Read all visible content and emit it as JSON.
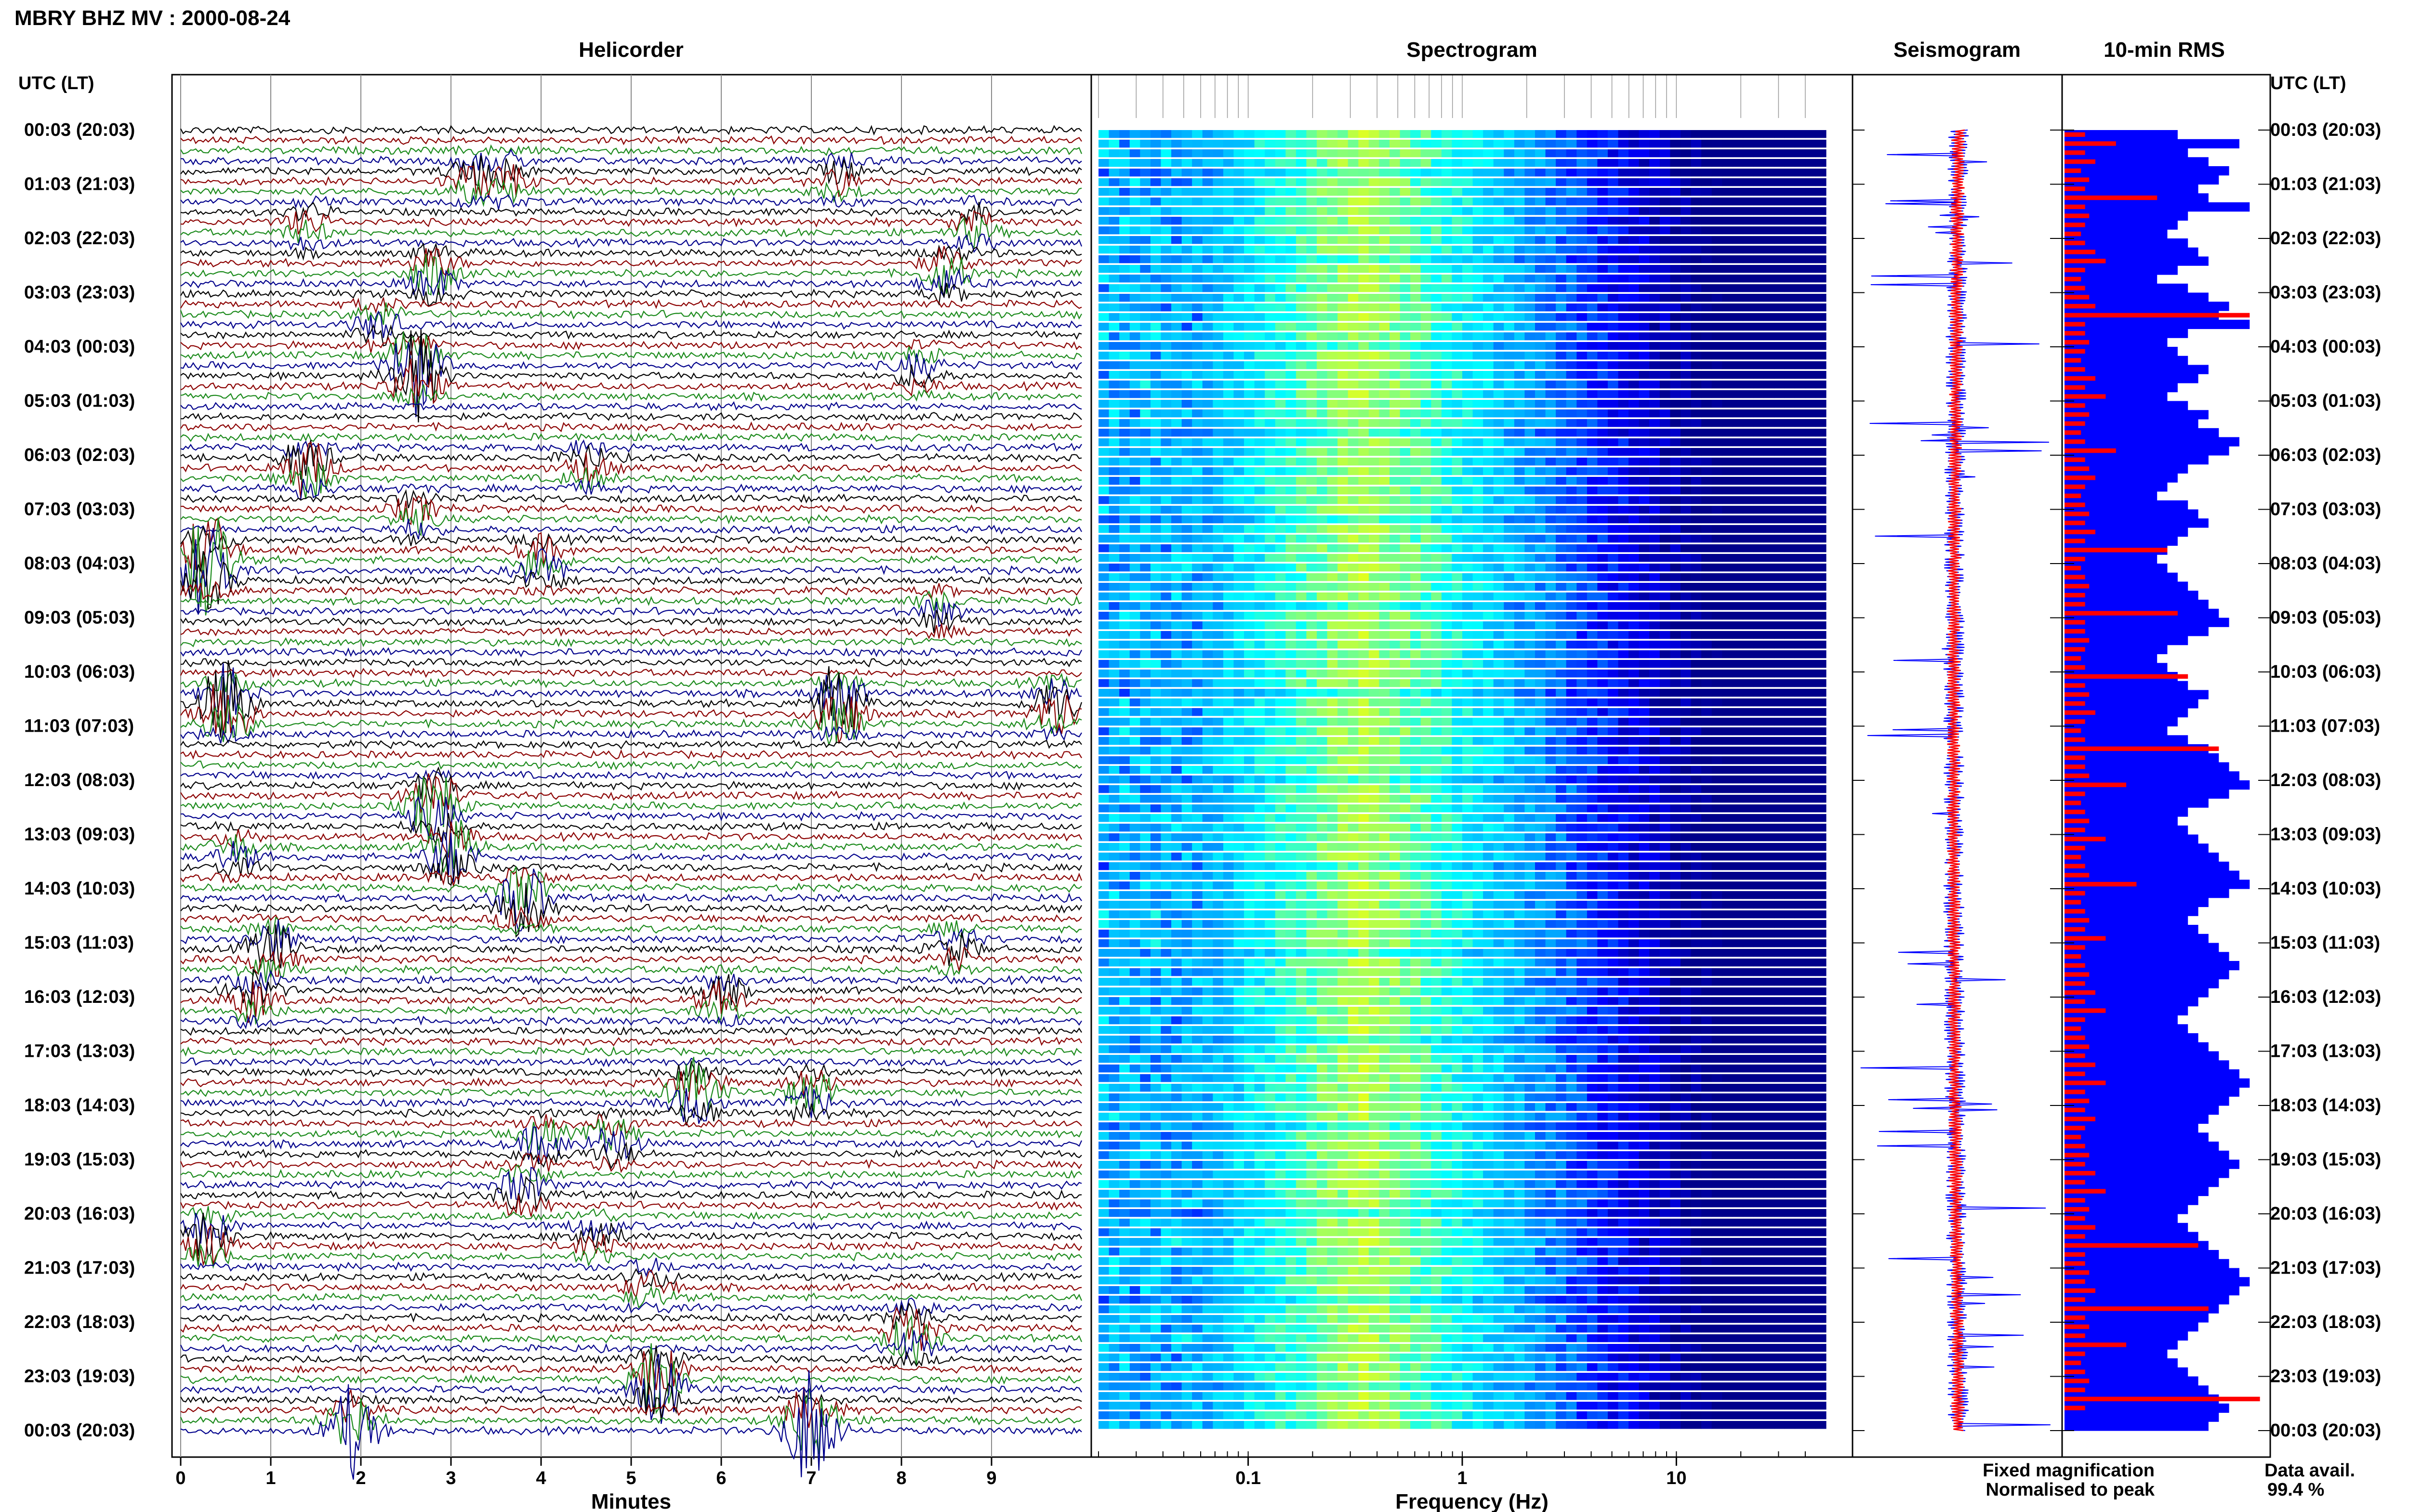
{
  "title": "MBRY BHZ MV : 2000-08-24",
  "utc_label_left": "UTC (LT)",
  "utc_label_right": "UTC (LT)",
  "panels": {
    "helicorder": {
      "title": "Helicorder",
      "xlabel": "Minutes"
    },
    "spectrogram": {
      "title": "Spectrogram",
      "xlabel": "Frequency (Hz)"
    },
    "seismogram": {
      "title": "Seismogram"
    },
    "rms": {
      "title": "10-min RMS"
    }
  },
  "legend": {
    "fixed": "Fixed magnification",
    "normalised": "Normalised to peak",
    "fixed_color": "#1a1aff",
    "normalised_color": "#ff1a1a"
  },
  "data_avail": {
    "label": "Data avail.",
    "value": "99.4 %"
  },
  "time_labels": [
    "00:03 (20:03)",
    "01:03 (21:03)",
    "02:03 (22:03)",
    "03:03 (23:03)",
    "04:03 (00:03)",
    "05:03 (01:03)",
    "06:03 (02:03)",
    "07:03 (03:03)",
    "08:03 (04:03)",
    "09:03 (05:03)",
    "10:03 (06:03)",
    "11:03 (07:03)",
    "12:03 (08:03)",
    "13:03 (09:03)",
    "14:03 (10:03)",
    "15:03 (11:03)",
    "16:03 (12:03)",
    "17:03 (13:03)",
    "18:03 (14:03)",
    "19:03 (15:03)",
    "20:03 (16:03)",
    "21:03 (17:03)",
    "22:03 (18:03)",
    "23:03 (19:03)",
    "00:03 (20:03)"
  ],
  "chart_data": [
    {
      "type": "line",
      "title": "Helicorder",
      "xlabel": "Minutes",
      "xlim": [
        0,
        10
      ],
      "xticks": [
        "0",
        "1",
        "2",
        "3",
        "4",
        "5",
        "6",
        "7",
        "8",
        "9"
      ],
      "trace_colors": [
        "#000000",
        "#8b0000",
        "#1b8a1b",
        "#00008b"
      ],
      "events": [
        {
          "t": 3.2,
          "amp": 0.6,
          "ch": 1
        },
        {
          "t": 3.6,
          "amp": 0.7,
          "ch": 1
        },
        {
          "t": 7.3,
          "amp": 0.5,
          "ch": 1
        },
        {
          "t": 1.4,
          "amp": 0.5,
          "ch": 2
        },
        {
          "t": 8.8,
          "amp": 0.6,
          "ch": 2
        },
        {
          "t": 2.8,
          "amp": 0.9,
          "ch": 3
        },
        {
          "t": 8.5,
          "amp": 0.8,
          "ch": 3
        },
        {
          "t": 2.2,
          "amp": 0.6,
          "ch": 4
        },
        {
          "t": 2.6,
          "amp": 2.2,
          "ch": 5
        },
        {
          "t": 8.2,
          "amp": 0.5,
          "ch": 5
        },
        {
          "t": 1.4,
          "amp": 1.2,
          "ch": 7
        },
        {
          "t": 4.5,
          "amp": 0.6,
          "ch": 7
        },
        {
          "t": 2.6,
          "amp": 0.6,
          "ch": 8
        },
        {
          "t": 0.3,
          "amp": 2.5,
          "ch": 9
        },
        {
          "t": 4.0,
          "amp": 0.9,
          "ch": 9
        },
        {
          "t": 8.4,
          "amp": 0.5,
          "ch": 10
        },
        {
          "t": 0.5,
          "amp": 2.0,
          "ch": 12
        },
        {
          "t": 7.3,
          "amp": 1.8,
          "ch": 12
        },
        {
          "t": 9.7,
          "amp": 1.0,
          "ch": 12
        },
        {
          "t": 2.8,
          "amp": 1.5,
          "ch": 14
        },
        {
          "t": 0.6,
          "amp": 0.6,
          "ch": 15
        },
        {
          "t": 3.0,
          "amp": 1.3,
          "ch": 15
        },
        {
          "t": 3.8,
          "amp": 1.5,
          "ch": 16
        },
        {
          "t": 1.0,
          "amp": 1.0,
          "ch": 17
        },
        {
          "t": 8.6,
          "amp": 0.6,
          "ch": 17
        },
        {
          "t": 0.8,
          "amp": 0.9,
          "ch": 18
        },
        {
          "t": 6.0,
          "amp": 0.7,
          "ch": 18
        },
        {
          "t": 5.7,
          "amp": 1.2,
          "ch": 20
        },
        {
          "t": 7.0,
          "amp": 0.8,
          "ch": 20
        },
        {
          "t": 4.0,
          "amp": 0.8,
          "ch": 21
        },
        {
          "t": 4.8,
          "amp": 0.8,
          "ch": 21
        },
        {
          "t": 3.8,
          "amp": 0.8,
          "ch": 22
        },
        {
          "t": 0.3,
          "amp": 1.0,
          "ch": 23
        },
        {
          "t": 4.6,
          "amp": 0.7,
          "ch": 23
        },
        {
          "t": 5.2,
          "amp": 0.6,
          "ch": 24
        },
        {
          "t": 8.1,
          "amp": 1.2,
          "ch": 25
        },
        {
          "t": 5.3,
          "amp": 1.8,
          "ch": 26
        },
        {
          "t": 1.9,
          "amp": 1.8,
          "ch": 27
        },
        {
          "t": 7.0,
          "amp": 2.5,
          "ch": 27
        }
      ]
    },
    {
      "type": "heatmap",
      "title": "Spectrogram",
      "xlabel": "Frequency (Hz)",
      "xscale": "log",
      "xlim": [
        0.02,
        50
      ],
      "xticks": [
        0.1,
        1,
        10
      ],
      "xtick_labels": [
        "0.1",
        "1",
        "10"
      ],
      "peak_frequency_band_hz": [
        0.2,
        0.6
      ],
      "colormap": [
        "#00008b",
        "#0000ff",
        "#00a0ff",
        "#00ffff",
        "#a0ff60",
        "#ffff00"
      ]
    },
    {
      "type": "line",
      "title": "Seismogram",
      "series": [
        {
          "name": "Fixed magnification",
          "color": "#0000ff"
        },
        {
          "name": "Normalised to peak",
          "color": "#ff0000"
        }
      ]
    },
    {
      "type": "bar",
      "title": "10-min RMS",
      "orientation": "horizontal",
      "series": [
        {
          "name": "Fixed magnification",
          "color": "#0000ff",
          "values": [
            0.55,
            0.85,
            0.6,
            0.7,
            0.8,
            0.75,
            0.65,
            0.7,
            0.9,
            0.6,
            0.55,
            0.5,
            0.6,
            0.65,
            0.7,
            0.55,
            0.45,
            0.6,
            0.7,
            0.8,
            0.75,
            0.9,
            0.6,
            0.5,
            0.55,
            0.6,
            0.7,
            0.65,
            0.55,
            0.5,
            0.6,
            0.7,
            0.65,
            0.75,
            0.85,
            0.8,
            0.7,
            0.6,
            0.55,
            0.5,
            0.45,
            0.6,
            0.65,
            0.7,
            0.6,
            0.55,
            0.5,
            0.45,
            0.5,
            0.55,
            0.6,
            0.65,
            0.7,
            0.75,
            0.8,
            0.7,
            0.6,
            0.5,
            0.45,
            0.5,
            0.55,
            0.6,
            0.7,
            0.65,
            0.6,
            0.55,
            0.5,
            0.6,
            0.7,
            0.75,
            0.8,
            0.85,
            0.9,
            0.8,
            0.7,
            0.6,
            0.55,
            0.6,
            0.65,
            0.7,
            0.75,
            0.8,
            0.85,
            0.9,
            0.8,
            0.7,
            0.65,
            0.6,
            0.65,
            0.7,
            0.75,
            0.8,
            0.85,
            0.8,
            0.75,
            0.7,
            0.65,
            0.6,
            0.55,
            0.6,
            0.65,
            0.7,
            0.75,
            0.8,
            0.85,
            0.9,
            0.85,
            0.8,
            0.75,
            0.7,
            0.65,
            0.7,
            0.75,
            0.8,
            0.85,
            0.8,
            0.75,
            0.7,
            0.65,
            0.6,
            0.55,
            0.6,
            0.65,
            0.7,
            0.75,
            0.8,
            0.85,
            0.9,
            0.85,
            0.8,
            0.75,
            0.7,
            0.65,
            0.6,
            0.55,
            0.5,
            0.55,
            0.6,
            0.65,
            0.7,
            0.75,
            0.8,
            0.75,
            0.7
          ]
        },
        {
          "name": "Normalised to peak",
          "color": "#ff0000",
          "values": [
            0.1,
            0.25,
            0.1,
            0.15,
            0.08,
            0.12,
            0.1,
            0.45,
            0.1,
            0.12,
            0.1,
            0.08,
            0.1,
            0.15,
            0.2,
            0.1,
            0.08,
            0.1,
            0.12,
            0.15,
            0.9,
            0.1,
            0.1,
            0.12,
            0.1,
            0.08,
            0.1,
            0.15,
            0.1,
            0.2,
            0.1,
            0.12,
            0.1,
            0.08,
            0.1,
            0.25,
            0.1,
            0.12,
            0.15,
            0.1,
            0.08,
            0.1,
            0.12,
            0.1,
            0.15,
            0.1,
            0.5,
            0.1,
            0.08,
            0.1,
            0.12,
            0.1,
            0.1,
            0.55,
            0.1,
            0.1,
            0.12,
            0.1,
            0.08,
            0.1,
            0.6,
            0.1,
            0.12,
            0.1,
            0.15,
            0.1,
            0.08,
            0.1,
            0.75,
            0.1,
            0.1,
            0.12,
            0.3,
            0.1,
            0.08,
            0.1,
            0.12,
            0.1,
            0.2,
            0.1,
            0.08,
            0.1,
            0.12,
            0.35,
            0.1,
            0.08,
            0.1,
            0.12,
            0.1,
            0.2,
            0.1,
            0.08,
            0.1,
            0.12,
            0.1,
            0.15,
            0.1,
            0.2,
            0.1,
            0.08,
            0.1,
            0.12,
            0.1,
            0.15,
            0.1,
            0.2,
            0.1,
            0.12,
            0.1,
            0.15,
            0.1,
            0.08,
            0.1,
            0.12,
            0.1,
            0.15,
            0.1,
            0.2,
            0.1,
            0.12,
            0.1,
            0.15,
            0.1,
            0.65,
            0.1,
            0.1,
            0.12,
            0.1,
            0.15,
            0.1,
            0.7,
            0.1,
            0.12,
            0.1,
            0.3,
            0.1,
            0.08,
            0.1,
            0.12,
            0.1,
            0.95,
            0.1
          ]
        }
      ]
    }
  ]
}
